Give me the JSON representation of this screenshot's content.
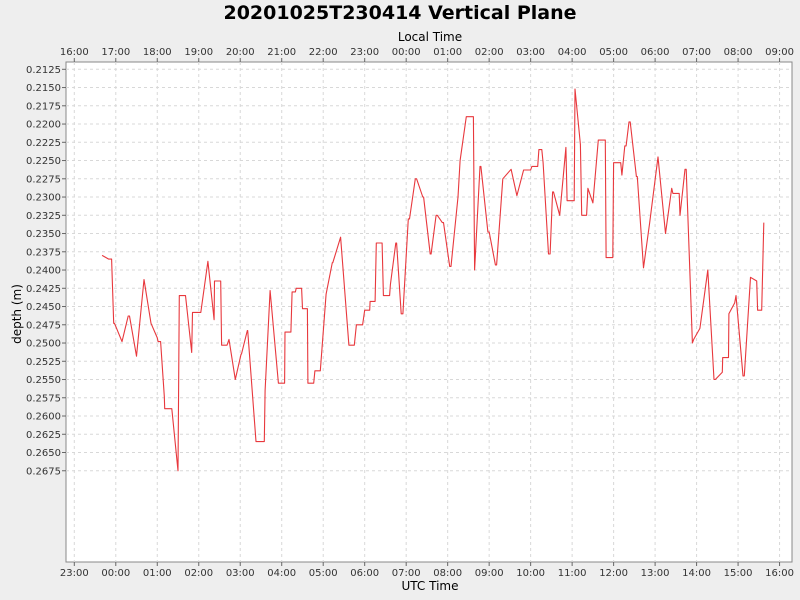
{
  "chart_data": {
    "type": "line",
    "title": "20201025T230414 Vertical Plane",
    "xlabel": "UTC Time",
    "x2label": "Local Time",
    "ylabel": "depth (m)",
    "ylim": [
      0.2115,
      0.28
    ],
    "y_inverted": true,
    "xlim_hours": [
      -1.2,
      16.3
    ],
    "grid": true,
    "line_color": "#e8383d",
    "bottom_ticks": [
      {
        "h": -1,
        "label": "23:00"
      },
      {
        "h": 0,
        "label": "00:00"
      },
      {
        "h": 1,
        "label": "01:00"
      },
      {
        "h": 2,
        "label": "02:00"
      },
      {
        "h": 3,
        "label": "03:00"
      },
      {
        "h": 4,
        "label": "04:00"
      },
      {
        "h": 5,
        "label": "05:00"
      },
      {
        "h": 6,
        "label": "06:00"
      },
      {
        "h": 7,
        "label": "07:00"
      },
      {
        "h": 8,
        "label": "08:00"
      },
      {
        "h": 9,
        "label": "09:00"
      },
      {
        "h": 10,
        "label": "10:00"
      },
      {
        "h": 11,
        "label": "11:00"
      },
      {
        "h": 12,
        "label": "12:00"
      },
      {
        "h": 13,
        "label": "13:00"
      },
      {
        "h": 14,
        "label": "14:00"
      },
      {
        "h": 15,
        "label": "15:00"
      },
      {
        "h": 16,
        "label": "16:00"
      }
    ],
    "top_ticks": [
      {
        "h": -1,
        "label": "16:00"
      },
      {
        "h": 0,
        "label": "17:00"
      },
      {
        "h": 1,
        "label": "18:00"
      },
      {
        "h": 2,
        "label": "19:00"
      },
      {
        "h": 3,
        "label": "20:00"
      },
      {
        "h": 4,
        "label": "21:00"
      },
      {
        "h": 5,
        "label": "22:00"
      },
      {
        "h": 6,
        "label": "23:00"
      },
      {
        "h": 7,
        "label": "00:00"
      },
      {
        "h": 8,
        "label": "01:00"
      },
      {
        "h": 9,
        "label": "02:00"
      },
      {
        "h": 10,
        "label": "03:00"
      },
      {
        "h": 11,
        "label": "04:00"
      },
      {
        "h": 12,
        "label": "05:00"
      },
      {
        "h": 13,
        "label": "06:00"
      },
      {
        "h": 14,
        "label": "07:00"
      },
      {
        "h": 15,
        "label": "08:00"
      },
      {
        "h": 16,
        "label": "09:00"
      }
    ],
    "y_ticks": [
      "0.2125",
      "0.2150",
      "0.2175",
      "0.2200",
      "0.2225",
      "0.2250",
      "0.2275",
      "0.2300",
      "0.2325",
      "0.2350",
      "0.2375",
      "0.2400",
      "0.2425",
      "0.2450",
      "0.2475",
      "0.2500",
      "0.2525",
      "0.2550",
      "0.2575",
      "0.2600",
      "0.2625",
      "0.2650",
      "0.2675"
    ],
    "series": [
      {
        "x_hours": [
          -0.33,
          -0.17,
          -0.1,
          -0.05,
          -0.03,
          0.15,
          0.3,
          0.33,
          0.5,
          0.68,
          0.85,
          1.0,
          1.02,
          1.08,
          1.17,
          1.18,
          1.35,
          1.5,
          1.53,
          1.68,
          1.83,
          1.85,
          2.05,
          2.22,
          2.37,
          2.38,
          2.53,
          2.55,
          2.68,
          2.73,
          2.88,
          3.02,
          3.03,
          3.17,
          3.18,
          3.38,
          3.58,
          3.6,
          3.72,
          3.92,
          4.07,
          4.08,
          4.22,
          4.25,
          4.33,
          4.35,
          4.48,
          4.5,
          4.62,
          4.63,
          4.77,
          4.8,
          4.93,
          5.07,
          5.22,
          5.23,
          5.42,
          5.62,
          5.75,
          5.8,
          5.95,
          6.0,
          6.12,
          6.13,
          6.25,
          6.28,
          6.42,
          6.45,
          6.6,
          6.62,
          6.75,
          6.77,
          6.88,
          6.92,
          7.05,
          7.08,
          7.22,
          7.25,
          7.4,
          7.42,
          7.58,
          7.6,
          7.72,
          7.75,
          7.87,
          7.9,
          8.05,
          8.08,
          8.25,
          8.3,
          8.45,
          8.47,
          8.62,
          8.65,
          8.78,
          8.8,
          8.97,
          9.0,
          9.15,
          9.18,
          9.33,
          9.53,
          9.67,
          9.83,
          10.0,
          10.03,
          10.17,
          10.2,
          10.27,
          10.3,
          10.43,
          10.47,
          10.53,
          10.55,
          10.7,
          10.85,
          10.88,
          11.05,
          11.07,
          11.2,
          11.23,
          11.35,
          11.38,
          11.5,
          11.63,
          11.8,
          11.82,
          11.98,
          12.0,
          12.17,
          12.2,
          12.27,
          12.3,
          12.37,
          12.4,
          12.55,
          12.57,
          12.72,
          12.87,
          13.07,
          13.25,
          13.4,
          13.43,
          13.58,
          13.6,
          13.72,
          13.75,
          13.9,
          13.93,
          14.08,
          14.27,
          14.42,
          14.45,
          14.62,
          14.63,
          14.77,
          14.78,
          14.92,
          14.95,
          15.12,
          15.15,
          15.3,
          15.45,
          15.47,
          15.57,
          15.62
        ],
        "depth": [
          0.238,
          0.2385,
          0.2385,
          0.2473,
          0.2473,
          0.2498,
          0.2463,
          0.2463,
          0.2518,
          0.2413,
          0.2473,
          0.2493,
          0.2498,
          0.2498,
          0.2573,
          0.259,
          0.259,
          0.2675,
          0.2435,
          0.2435,
          0.2513,
          0.2458,
          0.2458,
          0.2388,
          0.2468,
          0.2415,
          0.2415,
          0.2503,
          0.2503,
          0.2495,
          0.255,
          0.2515,
          0.2515,
          0.2483,
          0.2483,
          0.2635,
          0.2635,
          0.2565,
          0.2428,
          0.2555,
          0.2555,
          0.2485,
          0.2485,
          0.243,
          0.243,
          0.2425,
          0.2425,
          0.2453,
          0.2453,
          0.2555,
          0.2555,
          0.2538,
          0.2538,
          0.2433,
          0.239,
          0.239,
          0.2355,
          0.2503,
          0.2503,
          0.2475,
          0.2475,
          0.2455,
          0.2455,
          0.2443,
          0.2443,
          0.2363,
          0.2363,
          0.2435,
          0.2435,
          0.242,
          0.2363,
          0.2363,
          0.246,
          0.246,
          0.233,
          0.233,
          0.2275,
          0.2275,
          0.23,
          0.23,
          0.2378,
          0.2378,
          0.2325,
          0.2325,
          0.2335,
          0.2335,
          0.2395,
          0.2395,
          0.23,
          0.225,
          0.219,
          0.219,
          0.219,
          0.24,
          0.2258,
          0.2258,
          0.2348,
          0.2348,
          0.2393,
          0.2393,
          0.2275,
          0.2262,
          0.2298,
          0.2263,
          0.2263,
          0.2258,
          0.2258,
          0.2235,
          0.2235,
          0.2253,
          0.2378,
          0.2378,
          0.2293,
          0.2293,
          0.2325,
          0.2232,
          0.2305,
          0.2305,
          0.2152,
          0.2228,
          0.2325,
          0.2325,
          0.2288,
          0.2308,
          0.2222,
          0.2222,
          0.2383,
          0.2383,
          0.2253,
          0.2253,
          0.227,
          0.223,
          0.223,
          0.2197,
          0.2197,
          0.2272,
          0.2272,
          0.2397,
          0.2335,
          0.2245,
          0.235,
          0.2288,
          0.2295,
          0.2295,
          0.2325,
          0.2262,
          0.2262,
          0.25,
          0.2495,
          0.248,
          0.24,
          0.255,
          0.255,
          0.254,
          0.252,
          0.252,
          0.246,
          0.2445,
          0.2435,
          0.2545,
          0.2545,
          0.241,
          0.2415,
          0.2455,
          0.2455,
          0.2335
        ]
      }
    ]
  }
}
